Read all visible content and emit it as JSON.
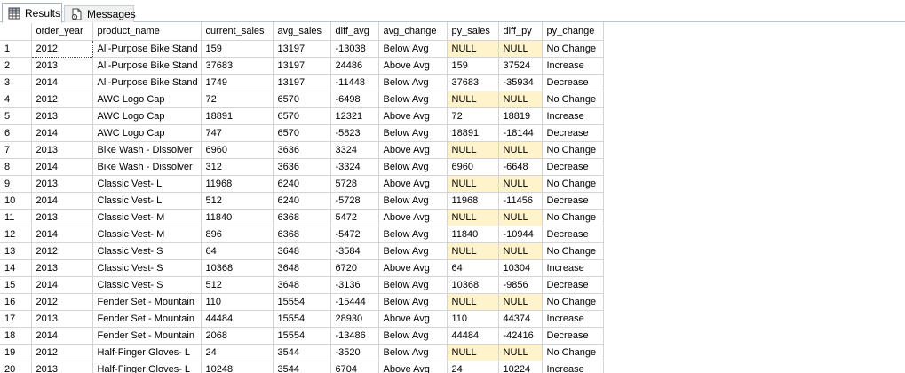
{
  "tabs": [
    {
      "label": "Results",
      "icon": "grid-icon",
      "active": true
    },
    {
      "label": "Messages",
      "icon": "messages-icon",
      "active": false
    }
  ],
  "colors": {
    "null_highlight": "#fff3cc",
    "grid_line": "#d4d4d4",
    "tab_border": "#a9b3be"
  },
  "columns": [
    "",
    "order_year",
    "product_name",
    "current_sales",
    "avg_sales",
    "diff_avg",
    "avg_change",
    "py_sales",
    "diff_py",
    "py_change"
  ],
  "rows": [
    [
      "1",
      "2012",
      "All-Purpose Bike Stand",
      "159",
      "13197",
      "-13038",
      "Below Avg",
      "NULL",
      "NULL",
      "No Change"
    ],
    [
      "2",
      "2013",
      "All-Purpose Bike Stand",
      "37683",
      "13197",
      "24486",
      "Above Avg",
      "159",
      "37524",
      "Increase"
    ],
    [
      "3",
      "2014",
      "All-Purpose Bike Stand",
      "1749",
      "13197",
      "-11448",
      "Below Avg",
      "37683",
      "-35934",
      "Decrease"
    ],
    [
      "4",
      "2012",
      "AWC Logo Cap",
      "72",
      "6570",
      "-6498",
      "Below Avg",
      "NULL",
      "NULL",
      "No Change"
    ],
    [
      "5",
      "2013",
      "AWC Logo Cap",
      "18891",
      "6570",
      "12321",
      "Above Avg",
      "72",
      "18819",
      "Increase"
    ],
    [
      "6",
      "2014",
      "AWC Logo Cap",
      "747",
      "6570",
      "-5823",
      "Below Avg",
      "18891",
      "-18144",
      "Decrease"
    ],
    [
      "7",
      "2013",
      "Bike Wash - Dissolver",
      "6960",
      "3636",
      "3324",
      "Above Avg",
      "NULL",
      "NULL",
      "No Change"
    ],
    [
      "8",
      "2014",
      "Bike Wash - Dissolver",
      "312",
      "3636",
      "-3324",
      "Below Avg",
      "6960",
      "-6648",
      "Decrease"
    ],
    [
      "9",
      "2013",
      "Classic Vest- L",
      "11968",
      "6240",
      "5728",
      "Above Avg",
      "NULL",
      "NULL",
      "No Change"
    ],
    [
      "10",
      "2014",
      "Classic Vest- L",
      "512",
      "6240",
      "-5728",
      "Below Avg",
      "11968",
      "-11456",
      "Decrease"
    ],
    [
      "11",
      "2013",
      "Classic Vest- M",
      "11840",
      "6368",
      "5472",
      "Above Avg",
      "NULL",
      "NULL",
      "No Change"
    ],
    [
      "12",
      "2014",
      "Classic Vest- M",
      "896",
      "6368",
      "-5472",
      "Below Avg",
      "11840",
      "-10944",
      "Decrease"
    ],
    [
      "13",
      "2012",
      "Classic Vest- S",
      "64",
      "3648",
      "-3584",
      "Below Avg",
      "NULL",
      "NULL",
      "No Change"
    ],
    [
      "14",
      "2013",
      "Classic Vest- S",
      "10368",
      "3648",
      "6720",
      "Above Avg",
      "64",
      "10304",
      "Increase"
    ],
    [
      "15",
      "2014",
      "Classic Vest- S",
      "512",
      "3648",
      "-3136",
      "Below Avg",
      "10368",
      "-9856",
      "Decrease"
    ],
    [
      "16",
      "2012",
      "Fender Set - Mountain",
      "110",
      "15554",
      "-15444",
      "Below Avg",
      "NULL",
      "NULL",
      "No Change"
    ],
    [
      "17",
      "2013",
      "Fender Set - Mountain",
      "44484",
      "15554",
      "28930",
      "Above Avg",
      "110",
      "44374",
      "Increase"
    ],
    [
      "18",
      "2014",
      "Fender Set - Mountain",
      "2068",
      "15554",
      "-13486",
      "Below Avg",
      "44484",
      "-42416",
      "Decrease"
    ],
    [
      "19",
      "2012",
      "Half-Finger Gloves- L",
      "24",
      "3544",
      "-3520",
      "Below Avg",
      "NULL",
      "NULL",
      "No Change"
    ],
    [
      "20",
      "2013",
      "Half-Finger Gloves- L",
      "10248",
      "3544",
      "6704",
      "Above Avg",
      "24",
      "10224",
      "Increase"
    ]
  ]
}
